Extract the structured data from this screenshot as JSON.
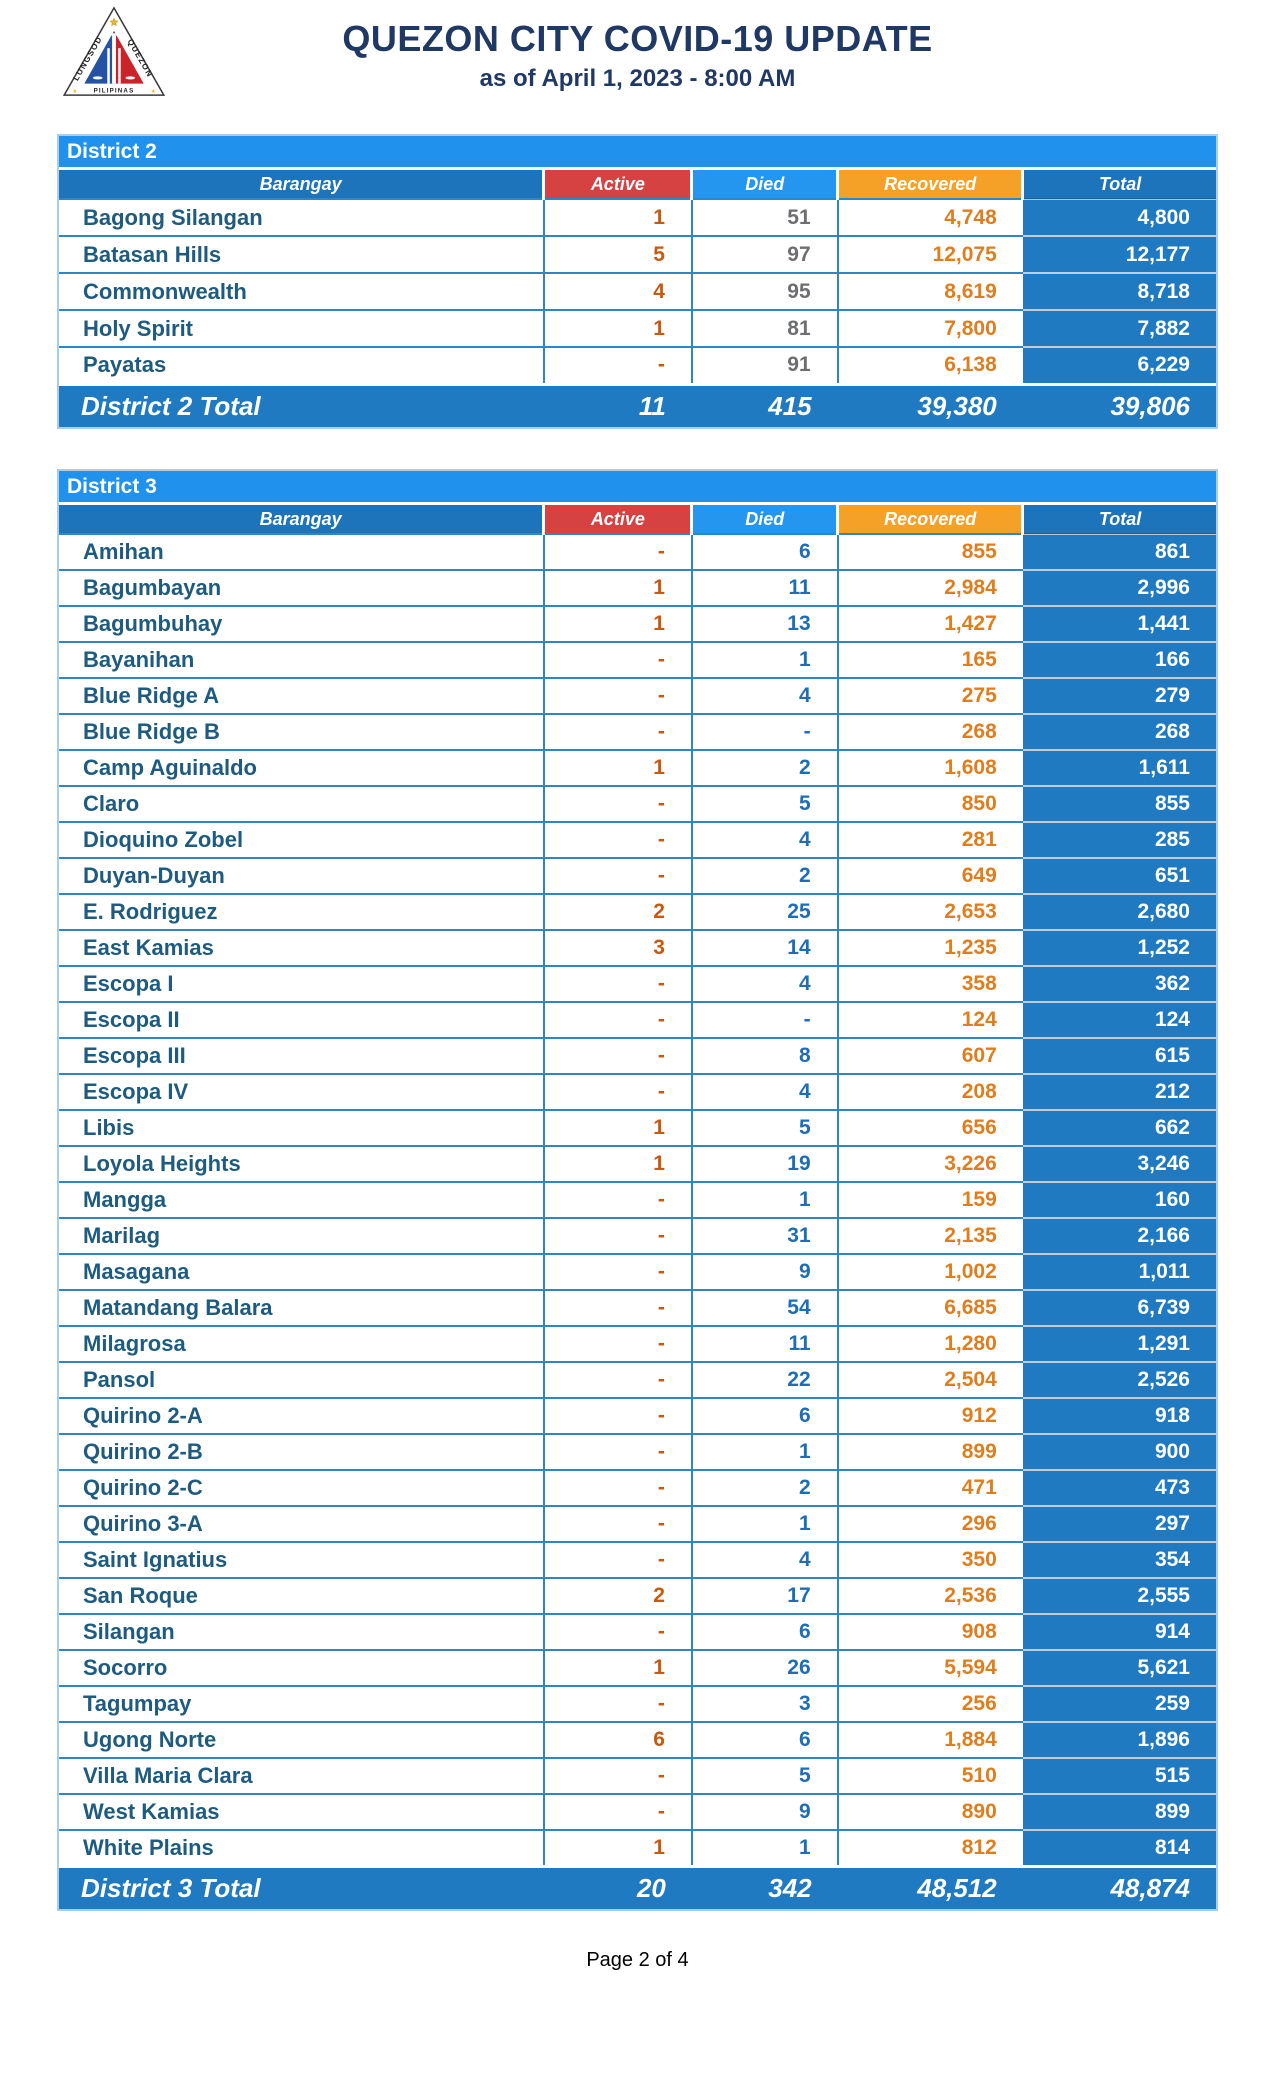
{
  "header": {
    "title": "QUEZON CITY COVID-19 UPDATE",
    "subtitle": "as of April 1, 2023 - 8:00 AM",
    "logo": {
      "label_left": "LUNGSOD",
      "label_right": "QUEZON",
      "label_bottom": "PILIPINAS"
    }
  },
  "columns": [
    "Barangay",
    "Active",
    "Died",
    "Recovered",
    "Total"
  ],
  "tables": [
    {
      "district": "District 2",
      "total_label": "District 2 Total",
      "died_value_color": "#6d6e71",
      "rows": [
        [
          "Bagong Silangan",
          "1",
          "51",
          "4,748",
          "4,800"
        ],
        [
          "Batasan Hills",
          "5",
          "97",
          "12,075",
          "12,177"
        ],
        [
          "Commonwealth",
          "4",
          "95",
          "8,619",
          "8,718"
        ],
        [
          "Holy Spirit",
          "1",
          "81",
          "7,800",
          "7,882"
        ],
        [
          "Payatas",
          "-",
          "91",
          "6,138",
          "6,229"
        ]
      ],
      "totals": [
        "11",
        "415",
        "39,380",
        "39,806"
      ]
    },
    {
      "district": "District 3",
      "total_label": "District 3 Total",
      "died_value_color": "#1f6db4",
      "rows": [
        [
          "Amihan",
          "-",
          "6",
          "855",
          "861"
        ],
        [
          "Bagumbayan",
          "1",
          "11",
          "2,984",
          "2,996"
        ],
        [
          "Bagumbuhay",
          "1",
          "13",
          "1,427",
          "1,441"
        ],
        [
          "Bayanihan",
          "-",
          "1",
          "165",
          "166"
        ],
        [
          "Blue Ridge A",
          "-",
          "4",
          "275",
          "279"
        ],
        [
          "Blue Ridge B",
          "-",
          "-",
          "268",
          "268"
        ],
        [
          "Camp Aguinaldo",
          "1",
          "2",
          "1,608",
          "1,611"
        ],
        [
          "Claro",
          "-",
          "5",
          "850",
          "855"
        ],
        [
          "Dioquino Zobel",
          "-",
          "4",
          "281",
          "285"
        ],
        [
          "Duyan-Duyan",
          "-",
          "2",
          "649",
          "651"
        ],
        [
          "E. Rodriguez",
          "2",
          "25",
          "2,653",
          "2,680"
        ],
        [
          "East Kamias",
          "3",
          "14",
          "1,235",
          "1,252"
        ],
        [
          "Escopa I",
          "-",
          "4",
          "358",
          "362"
        ],
        [
          "Escopa II",
          "-",
          "-",
          "124",
          "124"
        ],
        [
          "Escopa III",
          "-",
          "8",
          "607",
          "615"
        ],
        [
          "Escopa IV",
          "-",
          "4",
          "208",
          "212"
        ],
        [
          "Libis",
          "1",
          "5",
          "656",
          "662"
        ],
        [
          "Loyola Heights",
          "1",
          "19",
          "3,226",
          "3,246"
        ],
        [
          "Mangga",
          "-",
          "1",
          "159",
          "160"
        ],
        [
          "Marilag",
          "-",
          "31",
          "2,135",
          "2,166"
        ],
        [
          "Masagana",
          "-",
          "9",
          "1,002",
          "1,011"
        ],
        [
          "Matandang Balara",
          "-",
          "54",
          "6,685",
          "6,739"
        ],
        [
          "Milagrosa",
          "-",
          "11",
          "1,280",
          "1,291"
        ],
        [
          "Pansol",
          "-",
          "22",
          "2,504",
          "2,526"
        ],
        [
          "Quirino 2-A",
          "-",
          "6",
          "912",
          "918"
        ],
        [
          "Quirino 2-B",
          "-",
          "1",
          "899",
          "900"
        ],
        [
          "Quirino 2-C",
          "-",
          "2",
          "471",
          "473"
        ],
        [
          "Quirino 3-A",
          "-",
          "1",
          "296",
          "297"
        ],
        [
          "Saint Ignatius",
          "-",
          "4",
          "350",
          "354"
        ],
        [
          "San Roque",
          "2",
          "17",
          "2,536",
          "2,555"
        ],
        [
          "Silangan",
          "-",
          "6",
          "908",
          "914"
        ],
        [
          "Socorro",
          "1",
          "26",
          "5,594",
          "5,621"
        ],
        [
          "Tagumpay",
          "-",
          "3",
          "256",
          "259"
        ],
        [
          "Ugong Norte",
          "6",
          "6",
          "1,884",
          "1,896"
        ],
        [
          "Villa Maria Clara",
          "-",
          "5",
          "510",
          "515"
        ],
        [
          "West Kamias",
          "-",
          "9",
          "890",
          "899"
        ],
        [
          "White Plains",
          "1",
          "1",
          "812",
          "814"
        ]
      ],
      "totals": [
        "20",
        "342",
        "48,512",
        "48,874"
      ]
    }
  ],
  "footer": {
    "page_label": "Page 2 of 4"
  },
  "colors": {
    "title_navy": "#1f3864",
    "bar_blue": "#2191ee",
    "header_dark_blue": "#1d74ba",
    "header_light_blue": "#2596f0",
    "header_red": "#d64141",
    "header_orange": "#f5a026",
    "total_fill": "#1f7ac2",
    "grid_blue": "#2e86c6",
    "table_border": "#aacdeb",
    "barangay_text": "#1f5b7e",
    "active_value": "#c55a11",
    "recovered_value": "#de7e1f",
    "logo_gold": "#f0b41c",
    "logo_blue": "#2453a6",
    "logo_red": "#cc2229"
  }
}
